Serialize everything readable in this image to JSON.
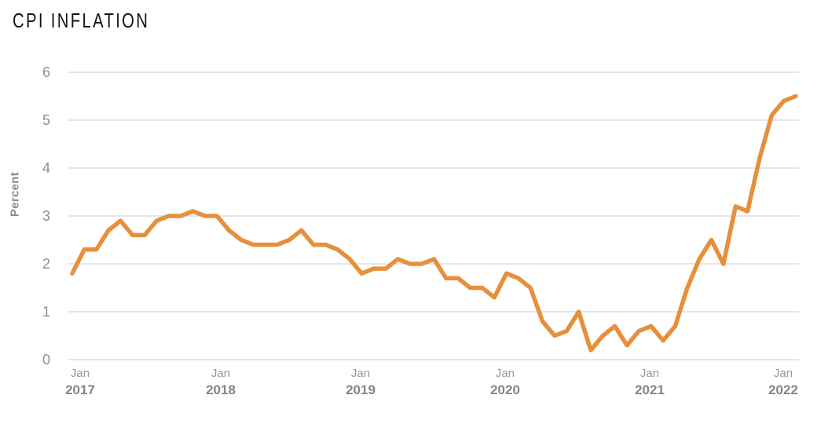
{
  "title": "CPI INFLATION",
  "colors": {
    "background": "#FFFFFF",
    "line": "#E78F3C",
    "grid": "#CCCCCC",
    "tick_text": "#8F8F8F",
    "month_text": "#979797",
    "year_text": "#858585",
    "title_text": "#141414"
  },
  "chart_data": {
    "type": "line",
    "title": "CPI INFLATION",
    "xlabel": "",
    "ylabel": "Percent",
    "frequency": "monthly",
    "x_range": [
      "Jan 2017",
      "Jan 2022"
    ],
    "ylim": [
      0,
      6
    ],
    "y_ticks": [
      0,
      1,
      2,
      3,
      4,
      5,
      6
    ],
    "grid": "horizontal",
    "legend": "none",
    "x_ticks": [
      {
        "month": "Jan",
        "year": "2017"
      },
      {
        "month": "Jan",
        "year": "2018"
      },
      {
        "month": "Jan",
        "year": "2019"
      },
      {
        "month": "Jan",
        "year": "2020"
      },
      {
        "month": "Jan",
        "year": "2021"
      },
      {
        "month": "Jan",
        "year": "2022"
      }
    ],
    "series": [
      {
        "name": "CPI inflation",
        "color": "#E78F3C",
        "x": [
          "2017-01",
          "2017-02",
          "2017-03",
          "2017-04",
          "2017-05",
          "2017-06",
          "2017-07",
          "2017-08",
          "2017-09",
          "2017-10",
          "2017-11",
          "2017-12",
          "2018-01",
          "2018-02",
          "2018-03",
          "2018-04",
          "2018-05",
          "2018-06",
          "2018-07",
          "2018-08",
          "2018-09",
          "2018-10",
          "2018-11",
          "2018-12",
          "2019-01",
          "2019-02",
          "2019-03",
          "2019-04",
          "2019-05",
          "2019-06",
          "2019-07",
          "2019-08",
          "2019-09",
          "2019-10",
          "2019-11",
          "2019-12",
          "2020-01",
          "2020-02",
          "2020-03",
          "2020-04",
          "2020-05",
          "2020-06",
          "2020-07",
          "2020-08",
          "2020-09",
          "2020-10",
          "2020-11",
          "2020-12",
          "2021-01",
          "2021-02",
          "2021-03",
          "2021-04",
          "2021-05",
          "2021-06",
          "2021-07",
          "2021-08",
          "2021-09",
          "2021-10",
          "2021-11",
          "2021-12",
          "2022-01"
        ],
        "values": [
          1.8,
          2.3,
          2.3,
          2.7,
          2.9,
          2.6,
          2.6,
          2.9,
          3.0,
          3.0,
          3.1,
          3.0,
          3.0,
          2.7,
          2.5,
          2.4,
          2.4,
          2.4,
          2.5,
          2.7,
          2.4,
          2.4,
          2.3,
          2.1,
          1.8,
          1.9,
          1.9,
          2.1,
          2.0,
          2.0,
          2.1,
          1.7,
          1.7,
          1.5,
          1.5,
          1.3,
          1.8,
          1.7,
          1.5,
          0.8,
          0.5,
          0.6,
          1.0,
          0.2,
          0.5,
          0.7,
          0.3,
          0.6,
          0.7,
          0.4,
          0.7,
          1.5,
          2.1,
          2.5,
          2.0,
          3.2,
          3.1,
          4.2,
          5.1,
          5.4,
          5.5
        ]
      }
    ]
  }
}
